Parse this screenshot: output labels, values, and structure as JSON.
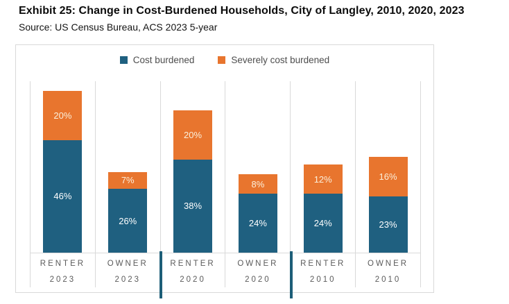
{
  "header": {
    "title": "Exhibit 25: Change in Cost-Burdened Households, City of Langley, 2010, 2020, 2023",
    "source": "Source: US Census Bureau, ACS 2023 5-year"
  },
  "chart_data": {
    "type": "bar",
    "stacked": true,
    "title": "Exhibit 25: Change in Cost-Burdened Households, City of Langley, 2010, 2020, 2023",
    "xlabel": "",
    "ylabel": "",
    "categories": [
      {
        "group": "RENTER",
        "year": "2023"
      },
      {
        "group": "OWNER",
        "year": "2023"
      },
      {
        "group": "RENTER",
        "year": "2020"
      },
      {
        "group": "OWNER",
        "year": "2020"
      },
      {
        "group": "RENTER",
        "year": "2010"
      },
      {
        "group": "OWNER",
        "year": "2010"
      }
    ],
    "series": [
      {
        "name": "Cost burdened",
        "color": "#1F6080",
        "label_color": "#ffffff",
        "values": [
          46,
          26,
          38,
          24,
          24,
          23
        ]
      },
      {
        "name": "Severely cost burdened",
        "color": "#E8752E",
        "label_color": "#FBF0DC",
        "values": [
          20,
          7,
          20,
          8,
          12,
          16
        ]
      }
    ],
    "value_suffix": "%",
    "ylim": [
      0,
      70
    ],
    "legend_position": "top-center",
    "grid": "vertical-category-separators-only",
    "group_divider_after_categories": [
      1,
      3
    ],
    "group_divider_color": "#1D5E78"
  },
  "style_tokens": {
    "grid_line_color": "#D9D9D9",
    "axis_text_color": "#5A5A5A",
    "legend_text_color": "#4D4D4D"
  }
}
